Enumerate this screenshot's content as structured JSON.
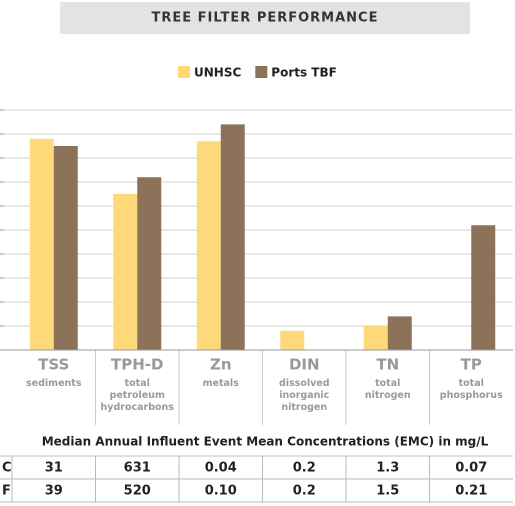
{
  "chart_data": {
    "type": "bar",
    "title": "TREE FILTER PERFORMANCE",
    "categories": [
      "TSS",
      "TPH-D",
      "Zn",
      "DIN",
      "TN",
      "TP"
    ],
    "category_notes": [
      "sediments",
      "total petroleum hydrocarbons",
      "metals",
      "dissolved inorganic nitrogen",
      "total nitrogen",
      "total phosphorus"
    ],
    "series": [
      {
        "name": "UNHSC",
        "color": "#fdd97a",
        "values": [
          88,
          65,
          87,
          8,
          10,
          null
        ]
      },
      {
        "name": "Ports TBF",
        "color": "#8b7258",
        "values": [
          85,
          72,
          94,
          null,
          14,
          52
        ]
      }
    ],
    "ylim": [
      0,
      100
    ],
    "yticks": [
      0,
      10,
      20,
      30,
      40,
      50,
      60,
      70,
      80,
      90,
      100
    ],
    "grid": true,
    "legend": "top"
  },
  "table": {
    "title": "Median Annual Influent Event Mean Concentrations (EMC) in mg/L",
    "rows": [
      [
        "C",
        "31",
        "631",
        "0.04",
        "0.2",
        "1.3",
        "0.07"
      ],
      [
        "F",
        "39",
        "520",
        "0.10",
        "0.2",
        "1.5",
        "0.21"
      ]
    ]
  }
}
